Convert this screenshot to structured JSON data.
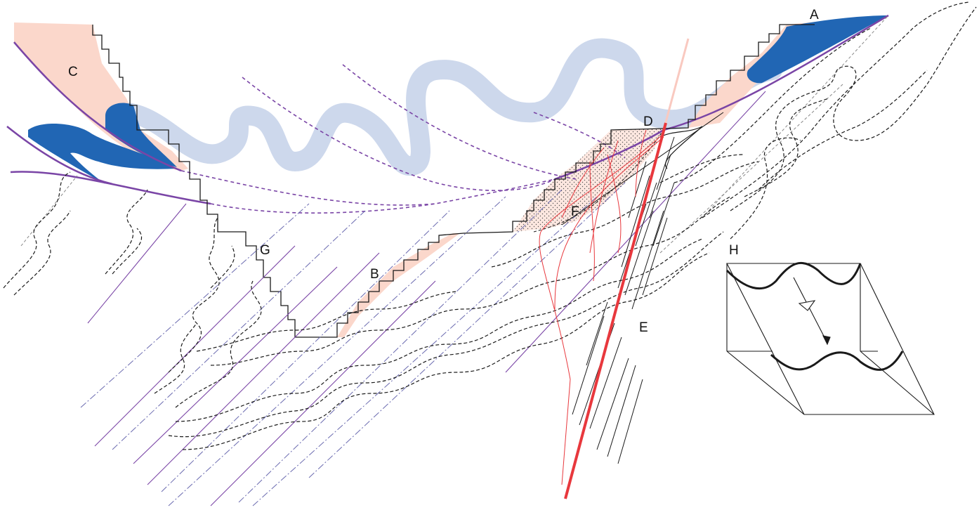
{
  "labels": {
    "a": "A",
    "b": "B",
    "c": "C",
    "d": "D",
    "e": "E",
    "f": "F",
    "g": "G",
    "h": "H"
  },
  "colors": {
    "salmon": "#fbd7cb",
    "blue_layer": "#2166b4",
    "pale_blue": "#cdd8ec",
    "purple": "#7a45a6",
    "red_fault": "#e8383d",
    "dark_line": "#1a1a1a",
    "stipple_fill": "#fde3dc"
  }
}
